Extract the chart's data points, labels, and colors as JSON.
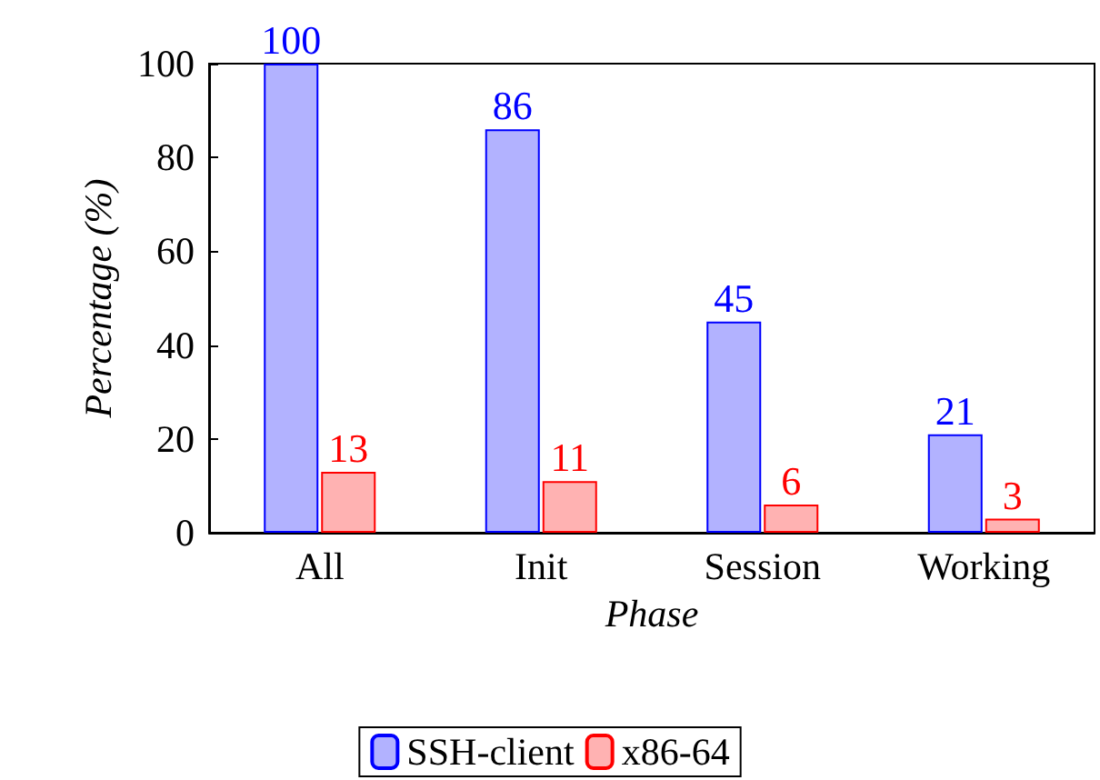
{
  "chart_data": {
    "type": "bar",
    "xlabel": "Phase",
    "ylabel": "Percentage (%)",
    "categories": [
      "All",
      "Init",
      "Session",
      "Working"
    ],
    "series": [
      {
        "name": "SSH-client",
        "color": "#0000ff",
        "values": [
          100,
          86,
          45,
          21
        ]
      },
      {
        "name": "x86-64",
        "color": "#ff0000",
        "values": [
          13,
          11,
          6,
          3
        ]
      }
    ],
    "ylim": [
      0,
      100
    ],
    "yticks": [
      0,
      20,
      40,
      60,
      80,
      100
    ],
    "data_labels": true,
    "legend": "bottom",
    "grid": false
  }
}
